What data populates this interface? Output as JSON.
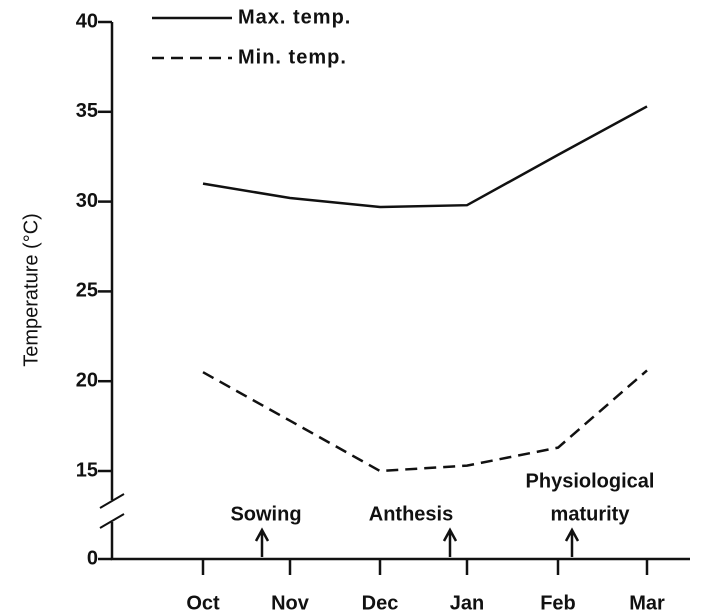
{
  "chart_data": {
    "type": "line",
    "ylabel": "Temperature (°C)",
    "categories": [
      "Oct",
      "Nov",
      "Dec",
      "Jan",
      "Feb",
      "Mar"
    ],
    "series": [
      {
        "name": "Max. temp.",
        "color": "#111111",
        "dash": false,
        "values": [
          31.0,
          30.2,
          29.7,
          29.8,
          32.6,
          35.3
        ]
      },
      {
        "name": "Min. temp.",
        "color": "#111111",
        "dash": true,
        "values": [
          20.5,
          17.8,
          15.0,
          15.3,
          16.3,
          20.6
        ]
      }
    ],
    "ylim": [
      0,
      40
    ],
    "yticks": [
      0,
      15,
      20,
      25,
      30,
      35,
      40
    ],
    "ybreak": [
      0,
      15
    ],
    "legend": "top-left",
    "annotations": [
      {
        "lines": [
          "Sowing"
        ]
      },
      {
        "lines": [
          "Anthesis"
        ]
      },
      {
        "lines": [
          "Physiological",
          "maturity"
        ]
      }
    ]
  }
}
